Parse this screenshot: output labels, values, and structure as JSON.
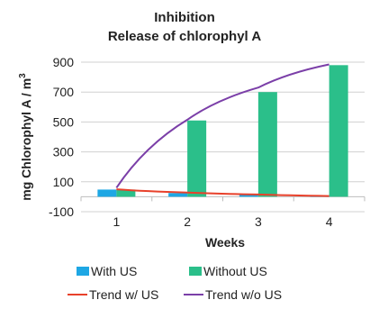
{
  "chart_data": {
    "type": "bar",
    "title_lines": [
      "Inhibition",
      "Release of chlorophyl A"
    ],
    "xlabel": "Weeks",
    "ylabel": "mg Chlorophyl A / m",
    "ylabel_superscript": "3",
    "categories": [
      "1",
      "2",
      "3",
      "4"
    ],
    "ylim": [
      -100,
      900
    ],
    "yticks": [
      "900",
      "700",
      "500",
      "300",
      "100",
      "-100"
    ],
    "ytick_values": [
      900,
      700,
      500,
      300,
      100,
      -100
    ],
    "grid": true,
    "legend_position": "bottom",
    "series": [
      {
        "name": "With US",
        "kind": "bar",
        "color": "#1ea7e4",
        "values": [
          48,
          25,
          12,
          5
        ]
      },
      {
        "name": "Without US",
        "kind": "bar",
        "color": "#2bbf8a",
        "values": [
          48,
          510,
          700,
          880
        ]
      },
      {
        "name": "Trend w/ US",
        "kind": "line",
        "color": "#e8412b",
        "values": [
          50,
          28,
          15,
          5
        ]
      },
      {
        "name": "Trend w/o US",
        "kind": "line",
        "color": "#7b3fa8",
        "values": [
          60,
          515,
          730,
          885
        ]
      }
    ]
  }
}
